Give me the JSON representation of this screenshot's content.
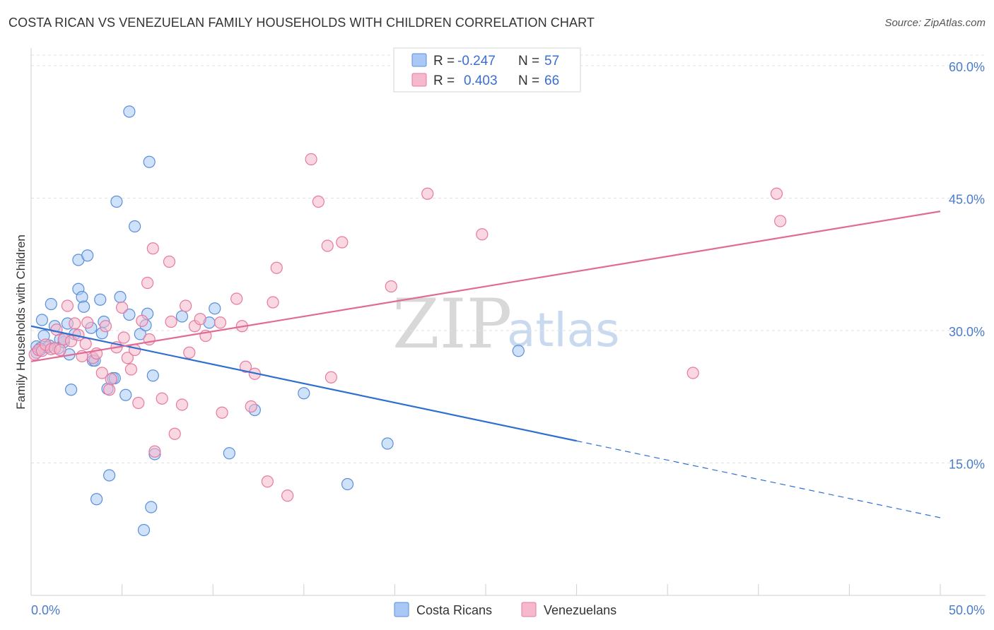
{
  "title": "COSTA RICAN VS VENEZUELAN FAMILY HOUSEHOLDS WITH CHILDREN CORRELATION CHART",
  "source": "Source: ZipAtlas.com",
  "watermark": {
    "zip": "ZIP",
    "atlas": "atlas"
  },
  "legend": {
    "rows": [
      {
        "r_label": "R =",
        "r_value": "-0.247",
        "n_label": "N =",
        "n_value": "57",
        "color": "#a9c8f5"
      },
      {
        "r_label": "R =",
        "r_value": "0.403",
        "n_label": "N =",
        "n_value": "66",
        "color": "#f6b8cb"
      }
    ]
  },
  "bottom_legend": [
    {
      "label": "Costa Ricans",
      "color": "#a9c8f5"
    },
    {
      "label": "Venezuelans",
      "color": "#f6b8cb"
    }
  ],
  "chart_data": {
    "type": "scatter",
    "title": "COSTA RICAN VS VENEZUELAN FAMILY HOUSEHOLDS WITH CHILDREN CORRELATION CHART",
    "xlabel": "",
    "ylabel": "Family Households with Children",
    "xlim": [
      0,
      50
    ],
    "ylim": [
      0,
      62
    ],
    "x_tick_labels": [
      "0.0%",
      "50.0%"
    ],
    "y_tick_values": [
      15,
      30,
      45,
      60
    ],
    "y_tick_labels": [
      "15.0%",
      "30.0%",
      "45.0%",
      "60.0%"
    ],
    "grid": true,
    "series": [
      {
        "name": "Costa Ricans",
        "color": "#5b8fd9",
        "fill": "#a9c8f5",
        "trend": {
          "x0": 0,
          "y0": 30.5,
          "x1": 30,
          "y1": 17.5,
          "dash_x1": 50,
          "dash_y1": 8.8,
          "color": "#2f6fd0"
        },
        "points": [
          [
            0.3,
            27.5
          ],
          [
            0.3,
            28.2
          ],
          [
            0.5,
            27.8
          ],
          [
            0.6,
            31.2
          ],
          [
            0.7,
            29.4
          ],
          [
            1.0,
            28.3
          ],
          [
            1.1,
            33.0
          ],
          [
            1.3,
            30.5
          ],
          [
            1.5,
            28.0
          ],
          [
            1.6,
            29.0
          ],
          [
            1.8,
            28.7
          ],
          [
            2.0,
            30.8
          ],
          [
            2.1,
            27.3
          ],
          [
            2.2,
            23.3
          ],
          [
            2.4,
            29.6
          ],
          [
            2.6,
            38.0
          ],
          [
            2.6,
            34.7
          ],
          [
            2.8,
            33.8
          ],
          [
            2.9,
            32.7
          ],
          [
            3.1,
            38.5
          ],
          [
            3.3,
            30.3
          ],
          [
            3.4,
            26.6
          ],
          [
            3.5,
            26.6
          ],
          [
            3.6,
            10.9
          ],
          [
            3.8,
            33.5
          ],
          [
            3.9,
            29.7
          ],
          [
            4.0,
            31.0
          ],
          [
            4.2,
            23.4
          ],
          [
            4.3,
            13.6
          ],
          [
            4.5,
            24.6
          ],
          [
            4.6,
            24.6
          ],
          [
            4.7,
            44.6
          ],
          [
            4.9,
            33.8
          ],
          [
            5.2,
            22.7
          ],
          [
            5.4,
            31.8
          ],
          [
            5.4,
            54.8
          ],
          [
            5.7,
            41.8
          ],
          [
            6.0,
            29.6
          ],
          [
            6.2,
            7.4
          ],
          [
            6.3,
            30.6
          ],
          [
            6.4,
            31.9
          ],
          [
            6.5,
            49.1
          ],
          [
            6.6,
            10.0
          ],
          [
            6.7,
            24.9
          ],
          [
            6.8,
            16.0
          ],
          [
            8.3,
            31.6
          ],
          [
            9.8,
            30.9
          ],
          [
            10.1,
            32.5
          ],
          [
            10.9,
            16.1
          ],
          [
            12.3,
            21.0
          ],
          [
            15.0,
            22.9
          ],
          [
            17.4,
            12.6
          ],
          [
            19.6,
            17.2
          ],
          [
            26.8,
            27.7
          ],
          [
            0.9,
            28.1
          ],
          [
            1.8,
            29.0
          ],
          [
            0.5,
            28.0
          ]
        ]
      },
      {
        "name": "Venezuelans",
        "color": "#e8799f",
        "fill": "#f6b8cb",
        "trend": {
          "x0": 0,
          "y0": 26.5,
          "x1": 50,
          "y1": 43.5,
          "color": "#e06b96"
        },
        "points": [
          [
            0.2,
            27.3
          ],
          [
            0.4,
            27.8
          ],
          [
            0.6,
            27.7
          ],
          [
            0.8,
            28.4
          ],
          [
            1.1,
            27.9
          ],
          [
            1.3,
            28.0
          ],
          [
            1.4,
            30.1
          ],
          [
            1.6,
            27.8
          ],
          [
            1.8,
            29.0
          ],
          [
            2.0,
            32.8
          ],
          [
            2.2,
            28.8
          ],
          [
            2.4,
            30.8
          ],
          [
            2.6,
            29.5
          ],
          [
            2.8,
            27.1
          ],
          [
            3.0,
            28.5
          ],
          [
            3.1,
            30.9
          ],
          [
            3.4,
            26.9
          ],
          [
            3.6,
            27.4
          ],
          [
            3.9,
            25.2
          ],
          [
            4.1,
            30.5
          ],
          [
            4.3,
            23.3
          ],
          [
            4.4,
            24.5
          ],
          [
            4.7,
            28.1
          ],
          [
            5.0,
            32.6
          ],
          [
            5.1,
            29.2
          ],
          [
            5.3,
            26.9
          ],
          [
            5.5,
            25.6
          ],
          [
            5.7,
            27.8
          ],
          [
            5.9,
            21.8
          ],
          [
            6.1,
            31.1
          ],
          [
            6.4,
            35.4
          ],
          [
            6.5,
            29.0
          ],
          [
            6.7,
            39.3
          ],
          [
            6.8,
            16.3
          ],
          [
            7.2,
            22.3
          ],
          [
            7.6,
            37.8
          ],
          [
            7.7,
            31.0
          ],
          [
            7.9,
            18.3
          ],
          [
            8.3,
            21.6
          ],
          [
            8.5,
            32.8
          ],
          [
            8.7,
            27.5
          ],
          [
            9.0,
            30.5
          ],
          [
            9.3,
            31.3
          ],
          [
            9.6,
            29.4
          ],
          [
            10.4,
            30.9
          ],
          [
            10.5,
            20.7
          ],
          [
            11.3,
            33.6
          ],
          [
            11.6,
            30.5
          ],
          [
            11.8,
            25.9
          ],
          [
            12.1,
            21.4
          ],
          [
            12.3,
            25.1
          ],
          [
            13.0,
            12.9
          ],
          [
            13.3,
            33.2
          ],
          [
            13.5,
            37.1
          ],
          [
            14.1,
            11.3
          ],
          [
            15.4,
            49.4
          ],
          [
            15.8,
            44.6
          ],
          [
            16.3,
            39.6
          ],
          [
            16.5,
            24.7
          ],
          [
            17.1,
            40.0
          ],
          [
            19.8,
            35.0
          ],
          [
            21.8,
            45.5
          ],
          [
            24.8,
            40.9
          ],
          [
            36.4,
            25.2
          ],
          [
            41.0,
            45.5
          ],
          [
            41.2,
            42.4
          ]
        ]
      }
    ]
  }
}
